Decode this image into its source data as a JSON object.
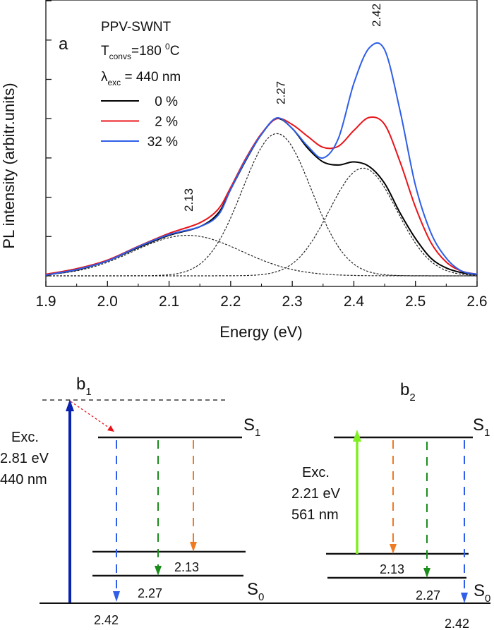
{
  "chart_data": {
    "type": "line",
    "panel_label": "a",
    "xlabel": "Energy (eV)",
    "ylabel": "PL intensity (arbitr.units)",
    "xlim": [
      1.9,
      2.6
    ],
    "ylim": [
      -0.27,
      7.02
    ],
    "xticks": [
      "1.9",
      "2.0",
      "2.1",
      "2.2",
      "2.3",
      "2.4",
      "2.5",
      "2.6"
    ],
    "ytick_values": [
      0,
      1,
      2,
      3,
      4,
      5,
      6,
      7
    ],
    "yticks_labeled": false,
    "grid": false,
    "legend": {
      "placement": "top-left",
      "title": "PPV-SWNT",
      "t_main": "T",
      "t_sub": "convs",
      "t_value": "=180 ",
      "t_sup": "0",
      "t_unit": "C",
      "l_main": "λ",
      "l_sub": "exc",
      "l_value": " = 440 nm"
    },
    "x": [
      1.9,
      1.95,
      2.0,
      2.05,
      2.1,
      2.15,
      2.18,
      2.2,
      2.225,
      2.25,
      2.275,
      2.3,
      2.325,
      2.35,
      2.375,
      2.4,
      2.425,
      2.45,
      2.475,
      2.5,
      2.525,
      2.55,
      2.575,
      2.6
    ],
    "series": [
      {
        "name": "0 %",
        "color": "#000000",
        "values": [
          0.02,
          0.15,
          0.38,
          0.72,
          1.03,
          1.25,
          1.6,
          2.2,
          2.95,
          3.6,
          4.0,
          3.75,
          3.25,
          2.9,
          2.82,
          2.9,
          2.78,
          2.35,
          1.6,
          0.95,
          0.45,
          0.2,
          0.08,
          0.03
        ]
      },
      {
        "name": "2 %",
        "color": "#e8141a",
        "values": [
          0.04,
          0.18,
          0.4,
          0.75,
          1.08,
          1.35,
          1.7,
          2.25,
          3.0,
          3.62,
          4.0,
          3.85,
          3.55,
          3.27,
          3.3,
          3.7,
          4.03,
          3.85,
          2.9,
          1.75,
          0.85,
          0.35,
          0.12,
          0.04
        ]
      },
      {
        "name": "32 %",
        "color": "#2f5ee8",
        "values": [
          0.02,
          0.16,
          0.38,
          0.74,
          1.05,
          1.25,
          1.55,
          2.2,
          2.97,
          3.6,
          4.02,
          3.75,
          3.3,
          3.0,
          3.5,
          4.9,
          5.8,
          5.75,
          4.2,
          2.3,
          1.1,
          0.45,
          0.12,
          0.04
        ]
      }
    ],
    "fit_components": [
      {
        "center": 2.13,
        "amplitude": 1.03,
        "sigma": 0.088
      },
      {
        "center": 2.275,
        "amplitude": 3.62,
        "sigma": 0.056
      },
      {
        "center": 2.415,
        "amplitude": 2.74,
        "sigma": 0.055
      }
    ],
    "peak_labels": [
      {
        "text": "2.13",
        "x": 2.13
      },
      {
        "text": "2.27",
        "x": 2.28
      },
      {
        "text": "2.42",
        "x": 2.435
      }
    ]
  },
  "diagram": {
    "b1": {
      "main": "b",
      "sub": "1"
    },
    "b2": {
      "main": "b",
      "sub": "2"
    },
    "s1": {
      "main": "S",
      "sub": "1"
    },
    "s0": {
      "main": "S",
      "sub": "0"
    },
    "left_exc": [
      "Exc.",
      "2.81 eV",
      "440 nm"
    ],
    "right_exc": [
      "Exc.",
      "2.21 eV",
      "561 nm"
    ],
    "labels": [
      "2.13",
      "2.27",
      "2.42"
    ],
    "colors": {
      "excitation_440": "#0a22b0",
      "excitation_561": "#7ef01e",
      "relax": "#e8141a",
      "e242": "#2f5ee8",
      "e227": "#1a8c1a",
      "e213": "#f07a20"
    }
  }
}
